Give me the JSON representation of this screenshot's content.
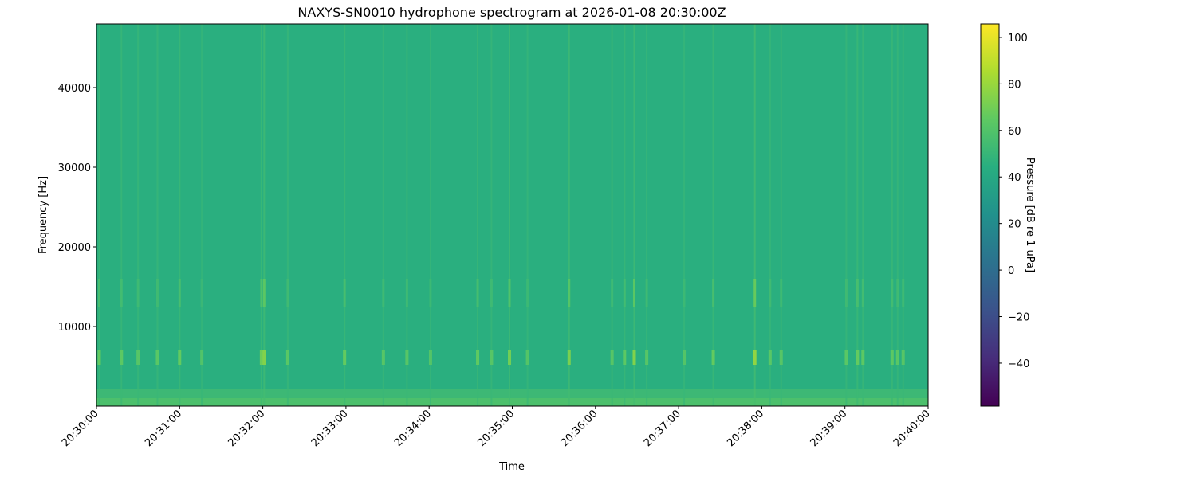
{
  "chart_data": {
    "type": "heatmap",
    "title": "NAXYS-SN0010 hydrophone spectrogram at 2026-01-08 20:30:00Z",
    "xlabel": "Time",
    "ylabel": "Frequency [Hz]",
    "xlim": [
      "20:30:00",
      "20:40:00"
    ],
    "ylim": [
      0,
      48000
    ],
    "x_ticks": [
      "20:30:00",
      "20:31:00",
      "20:32:00",
      "20:33:00",
      "20:34:00",
      "20:35:00",
      "20:36:00",
      "20:37:00",
      "20:38:00",
      "20:39:00",
      "20:40:00"
    ],
    "y_ticks": [
      10000,
      20000,
      30000,
      40000
    ],
    "colormap": "viridis",
    "colorbar": {
      "label": "Pressure [dB re 1 uPa]",
      "range": [
        -58.5,
        105.8
      ],
      "ticks": [
        -40,
        -20,
        0,
        20,
        40,
        60,
        80,
        100
      ]
    },
    "background_level_db": 45,
    "low_frequency_bands": [
      {
        "from_hz": 0,
        "to_hz": 1000,
        "level_db": 58
      },
      {
        "from_hz": 1000,
        "to_hz": 2200,
        "level_db": 52
      }
    ],
    "transients": [
      {
        "time": "20:30:02",
        "peak_db": 66
      },
      {
        "time": "20:30:18",
        "peak_db": 64
      },
      {
        "time": "20:30:30",
        "peak_db": 62
      },
      {
        "time": "20:30:44",
        "peak_db": 63
      },
      {
        "time": "20:31:00",
        "peak_db": 66
      },
      {
        "time": "20:31:16",
        "peak_db": 60
      },
      {
        "time": "20:31:59",
        "peak_db": 68
      },
      {
        "time": "20:32:01",
        "peak_db": 74
      },
      {
        "time": "20:32:18",
        "peak_db": 63
      },
      {
        "time": "20:32:59",
        "peak_db": 66
      },
      {
        "time": "20:33:27",
        "peak_db": 62
      },
      {
        "time": "20:33:44",
        "peak_db": 62
      },
      {
        "time": "20:34:01",
        "peak_db": 61
      },
      {
        "time": "20:34:35",
        "peak_db": 65
      },
      {
        "time": "20:34:45",
        "peak_db": 62
      },
      {
        "time": "20:34:58",
        "peak_db": 70
      },
      {
        "time": "20:35:11",
        "peak_db": 61
      },
      {
        "time": "20:35:41",
        "peak_db": 72
      },
      {
        "time": "20:36:12",
        "peak_db": 62
      },
      {
        "time": "20:36:21",
        "peak_db": 64
      },
      {
        "time": "20:36:28",
        "peak_db": 74
      },
      {
        "time": "20:36:37",
        "peak_db": 62
      },
      {
        "time": "20:37:04",
        "peak_db": 61
      },
      {
        "time": "20:37:25",
        "peak_db": 66
      },
      {
        "time": "20:37:55",
        "peak_db": 78
      },
      {
        "time": "20:38:06",
        "peak_db": 63
      },
      {
        "time": "20:38:14",
        "peak_db": 62
      },
      {
        "time": "20:39:01",
        "peak_db": 63
      },
      {
        "time": "20:39:09",
        "peak_db": 66
      },
      {
        "time": "20:39:13",
        "peak_db": 64
      },
      {
        "time": "20:39:34",
        "peak_db": 64
      },
      {
        "time": "20:39:38",
        "peak_db": 63
      },
      {
        "time": "20:39:42",
        "peak_db": 62
      }
    ]
  }
}
